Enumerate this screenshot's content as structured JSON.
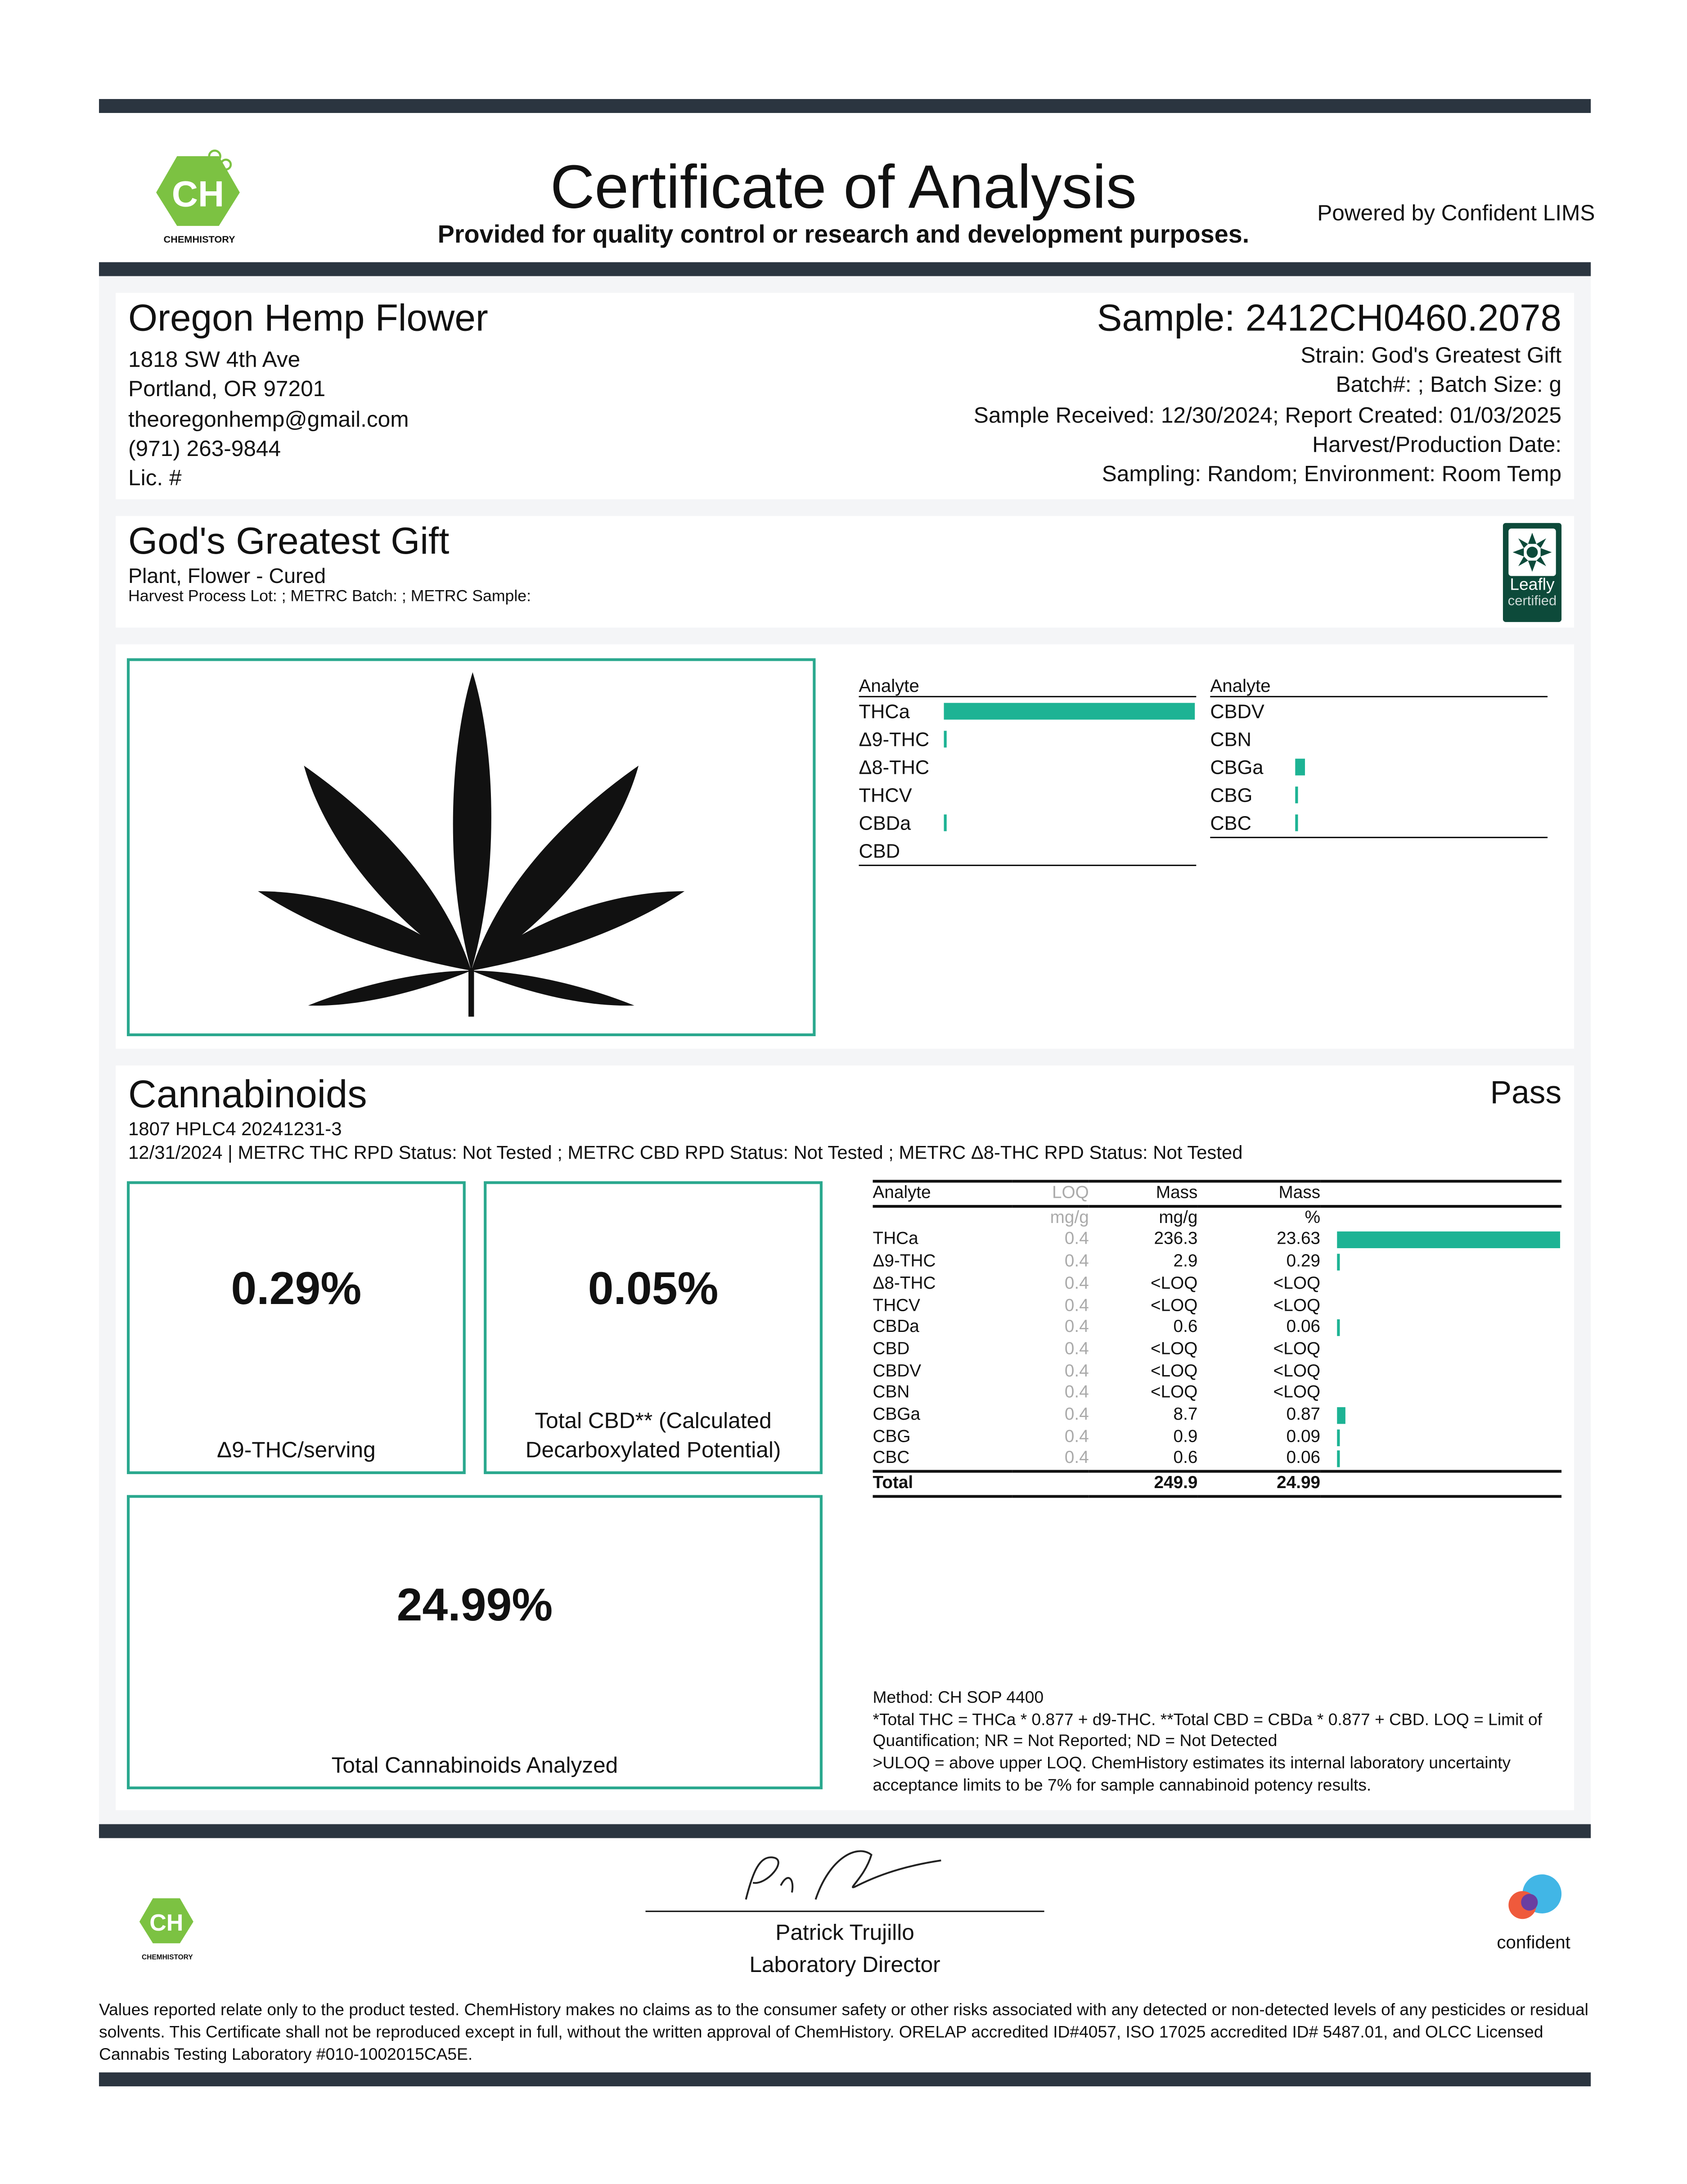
{
  "header": {
    "title": "Certificate of Analysis",
    "subtitle": "Provided for quality control or research and development purposes.",
    "powered_by": "Powered by Confident LIMS",
    "logo_text": "CHEMHISTORY"
  },
  "client": {
    "name": "Oregon Hemp Flower",
    "address1": "1818 SW 4th Ave",
    "address2": "Portland, OR 97201",
    "email": "theoregonhemp@gmail.com",
    "phone": "(971) 263-9844",
    "license": "Lic. #"
  },
  "sample": {
    "id": "Sample: 2412CH0460.2078",
    "strain": "Strain: God's Greatest Gift",
    "batch": "Batch#: ; Batch Size:  g",
    "dates": "Sample Received: 12/30/2024; Report Created: 01/03/2025",
    "harvest": "Harvest/Production Date:",
    "sampling": "Sampling: Random; Environment: Room Temp"
  },
  "product": {
    "name": "God's Greatest Gift",
    "type": "Plant, Flower - Cured",
    "lots": "Harvest Process Lot: ; METRC Batch: ; METRC Sample:",
    "badge_line1": "Leafly",
    "badge_line2": "certified"
  },
  "summary": {
    "header": "Analyte",
    "left": [
      {
        "name": "THCa",
        "pct": 23.63
      },
      {
        "name": "Δ9-THC",
        "pct": 0.29
      },
      {
        "name": "Δ8-THC",
        "pct": 0
      },
      {
        "name": "THCV",
        "pct": 0
      },
      {
        "name": "CBDa",
        "pct": 0.06
      },
      {
        "name": "CBD",
        "pct": 0
      }
    ],
    "right": [
      {
        "name": "CBDV",
        "pct": 0
      },
      {
        "name": "CBN",
        "pct": 0
      },
      {
        "name": "CBGa",
        "pct": 0.87
      },
      {
        "name": "CBG",
        "pct": 0.09
      },
      {
        "name": "CBC",
        "pct": 0.06
      }
    ]
  },
  "cannabinoids": {
    "title": "Cannabinoids",
    "status": "Pass",
    "instrument": "1807 HPLC4 20241231-3",
    "rpd": "12/31/2024 | METRC THC RPD Status: Not Tested ; METRC CBD RPD Status: Not Tested ; METRC Δ8-THC RPD Status: Not Tested",
    "box1_value": "0.29%",
    "box1_label": "Δ9-THC/serving",
    "box2_value": "0.05%",
    "box2_label": "Total CBD** (Calculated Decarboxylated Potential)",
    "box3_value": "24.99%",
    "box3_label": "Total Cannabinoids Analyzed",
    "columns": [
      "Analyte",
      "LOQ",
      "Mass",
      "Mass"
    ],
    "units": [
      "",
      "mg/g",
      "mg/g",
      "%"
    ],
    "rows": [
      {
        "analyte": "THCa",
        "loq": "0.4",
        "mg": "236.3",
        "pct": "23.63",
        "val": 23.63
      },
      {
        "analyte": "Δ9-THC",
        "loq": "0.4",
        "mg": "2.9",
        "pct": "0.29",
        "val": 0.29
      },
      {
        "analyte": "Δ8-THC",
        "loq": "0.4",
        "mg": "<LOQ",
        "pct": "<LOQ",
        "val": 0
      },
      {
        "analyte": "THCV",
        "loq": "0.4",
        "mg": "<LOQ",
        "pct": "<LOQ",
        "val": 0
      },
      {
        "analyte": "CBDa",
        "loq": "0.4",
        "mg": "0.6",
        "pct": "0.06",
        "val": 0.06
      },
      {
        "analyte": "CBD",
        "loq": "0.4",
        "mg": "<LOQ",
        "pct": "<LOQ",
        "val": 0
      },
      {
        "analyte": "CBDV",
        "loq": "0.4",
        "mg": "<LOQ",
        "pct": "<LOQ",
        "val": 0
      },
      {
        "analyte": "CBN",
        "loq": "0.4",
        "mg": "<LOQ",
        "pct": "<LOQ",
        "val": 0
      },
      {
        "analyte": "CBGa",
        "loq": "0.4",
        "mg": "8.7",
        "pct": "0.87",
        "val": 0.87
      },
      {
        "analyte": "CBG",
        "loq": "0.4",
        "mg": "0.9",
        "pct": "0.09",
        "val": 0.09
      },
      {
        "analyte": "CBC",
        "loq": "0.4",
        "mg": "0.6",
        "pct": "0.06",
        "val": 0.06
      }
    ],
    "total": {
      "label": "Total",
      "mg": "249.9",
      "pct": "24.99"
    },
    "method": "Method: CH SOP 4400",
    "notes": "*Total THC = THCa * 0.877 + d9-THC. **Total CBD = CBDa * 0.877 + CBD. LOQ = Limit of Quantification; NR = Not Reported; ND = Not Detected",
    "notes2": ">ULOQ = above upper LOQ. ChemHistory estimates its internal laboratory uncertainty acceptance limits to be 7% for sample cannabinoid potency results."
  },
  "signature": {
    "name": "Patrick Trujillo",
    "title": "Laboratory Director"
  },
  "footer": {
    "confident": "confident",
    "disclaimer": "Values reported relate only to the product tested. ChemHistory makes no claims as to the consumer safety or other risks associated with any detected or non-detected levels of any pesticides or residual solvents. This Certificate shall not be reproduced except in full, without the written approval of ChemHistory.  ORELAP accredited ID#4057, ISO 17025 accredited ID# 5487.01, and OLCC Licensed Cannabis Testing Laboratory #010-1002015CA5E."
  },
  "colors": {
    "accent": "#1db394",
    "dark_bar": "#2b3540",
    "box_border": "#2aa88e",
    "logo_green": "#7cc242",
    "leafly": "#0d4a3a"
  }
}
